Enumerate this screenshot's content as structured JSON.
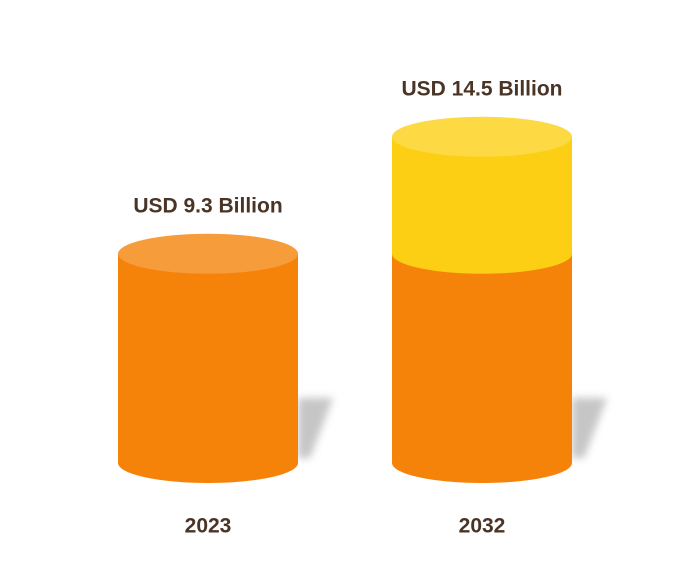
{
  "chart_data": {
    "type": "cylinder",
    "categories": [
      "2023",
      "2032"
    ],
    "values": [
      9.3,
      14.5
    ],
    "value_labels": [
      "USD 9.3 Billion",
      "USD 14.5 Billion"
    ],
    "series": [
      {
        "color": "#f5830a",
        "values": [
          9.3,
          9.3
        ]
      },
      {
        "color": "#fccf14",
        "values": [
          null,
          5.2
        ]
      }
    ]
  }
}
